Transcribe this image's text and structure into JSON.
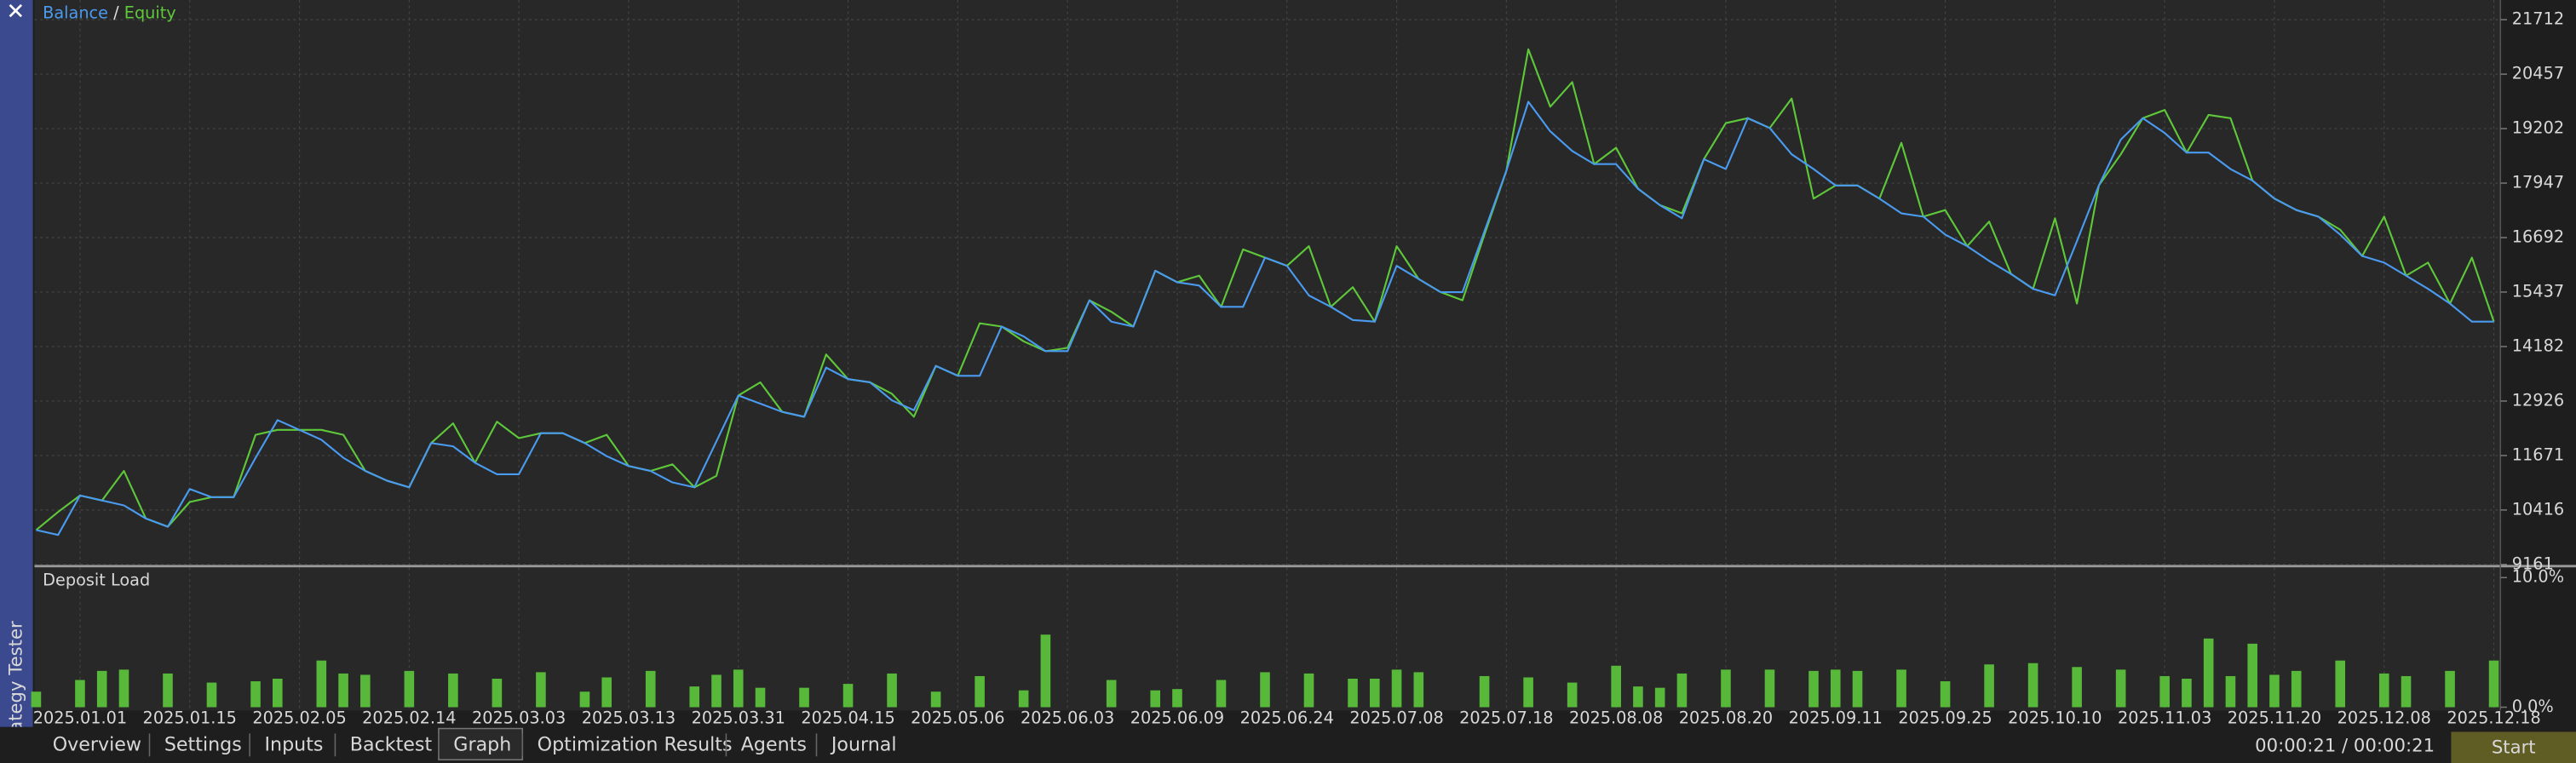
{
  "sidebar": {
    "title": "Strategy Tester"
  },
  "chart_data": [
    {
      "type": "line",
      "legend_separator": "/",
      "categories": [
        null,
        null,
        "2025.01.01",
        null,
        null,
        null,
        null,
        "2025.01.15",
        null,
        null,
        null,
        null,
        "2025.02.05",
        null,
        null,
        null,
        null,
        "2025.02.14",
        null,
        null,
        null,
        null,
        "2025.03.03",
        null,
        null,
        null,
        null,
        "2025.03.13",
        null,
        null,
        null,
        null,
        "2025.03.31",
        null,
        null,
        null,
        null,
        "2025.04.15",
        null,
        null,
        null,
        null,
        "2025.05.06",
        null,
        null,
        null,
        null,
        "2025.06.03",
        null,
        null,
        null,
        null,
        "2025.06.09",
        null,
        null,
        null,
        null,
        "2025.06.24",
        null,
        null,
        null,
        null,
        "2025.07.08",
        null,
        null,
        null,
        null,
        "2025.07.18",
        null,
        null,
        null,
        null,
        "2025.08.08",
        null,
        null,
        null,
        null,
        "2025.08.20",
        null,
        null,
        null,
        null,
        "2025.09.11",
        null,
        null,
        null,
        null,
        "2025.09.25",
        null,
        null,
        null,
        null,
        "2025.10.10",
        null,
        null,
        null,
        null,
        "2025.11.03",
        null,
        null,
        null,
        null,
        "2025.11.20",
        null,
        null,
        null,
        null,
        "2025.12.08",
        null,
        null,
        null,
        null,
        "2025.12.18"
      ],
      "series": [
        {
          "name": "Balance",
          "color": "#4a9bf0",
          "values": [
            9955,
            9841,
            10749,
            10635,
            10522,
            10219,
            10030,
            10900,
            10711,
            10711,
            11618,
            12487,
            12261,
            12034,
            11618,
            11316,
            11089,
            10938,
            11958,
            11883,
            11505,
            11240,
            11240,
            12185,
            12185,
            11958,
            11656,
            11429,
            11316,
            11051,
            10938,
            11996,
            13054,
            12865,
            12676,
            12563,
            13697,
            13432,
            13357,
            12941,
            12714,
            13735,
            13508,
            13508,
            14642,
            14415,
            14075,
            14075,
            15247,
            14755,
            14642,
            15927,
            15663,
            15587,
            15096,
            15096,
            16230,
            16041,
            15360,
            15096,
            14793,
            14755,
            16041,
            15738,
            15436,
            15436,
            16834,
            18233,
            19821,
            19140,
            18687,
            18384,
            18384,
            17817,
            17439,
            17137,
            18498,
            18271,
            19443,
            19216,
            18611,
            18271,
            17893,
            17893,
            17590,
            17250,
            17175,
            16759,
            16494,
            16154,
            15852,
            15511,
            15360,
            16608,
            17893,
            18951,
            19443,
            19102,
            18649,
            18649,
            18271,
            18006,
            17590,
            17326,
            17175,
            16759,
            16267,
            16116,
            15814,
            15511,
            15171,
            14755,
            14755
          ]
        },
        {
          "name": "Equity",
          "color": "#5ec83a",
          "values": [
            9955,
            10371,
            10749,
            10635,
            11316,
            10219,
            10030,
            10600,
            10711,
            10711,
            12148,
            12261,
            12261,
            12261,
            12148,
            11316,
            11089,
            10938,
            11958,
            12412,
            11505,
            12450,
            12072,
            12185,
            12185,
            11958,
            12148,
            11429,
            11316,
            11467,
            10938,
            11202,
            13054,
            13357,
            12676,
            12563,
            13999,
            13432,
            13357,
            13092,
            12563,
            13735,
            13508,
            14718,
            14642,
            14302,
            14075,
            14151,
            15247,
            14982,
            14642,
            15927,
            15663,
            15814,
            15096,
            16419,
            16230,
            16041,
            16494,
            15096,
            15549,
            14755,
            16494,
            15738,
            15436,
            15247,
            16759,
            18233,
            21030,
            19707,
            20274,
            18384,
            18762,
            17817,
            17439,
            17250,
            18498,
            19329,
            19443,
            19216,
            19896,
            17590,
            17893,
            17893,
            17590,
            18876,
            17175,
            17326,
            16494,
            17061,
            15852,
            15511,
            17137,
            15171,
            17893,
            18611,
            19443,
            19632,
            18649,
            19518,
            19443,
            18006,
            17590,
            17326,
            17175,
            16873,
            16267,
            17175,
            15814,
            16116,
            15171,
            16230,
            14755
          ]
        }
      ],
      "ylim": [
        9161,
        21712
      ],
      "yticks": [
        9161,
        10416,
        11671,
        12926,
        14182,
        15437,
        16692,
        17947,
        19202,
        20457,
        21712
      ],
      "grid": true
    },
    {
      "type": "bar",
      "title": "Deposit Load",
      "color": "#58b83a",
      "values": [
        1.2,
        null,
        2.1,
        2.8,
        2.9,
        null,
        2.6,
        null,
        1.9,
        null,
        2.0,
        2.2,
        null,
        3.6,
        2.6,
        2.5,
        null,
        2.8,
        null,
        2.6,
        null,
        2.2,
        null,
        2.7,
        null,
        1.2,
        2.3,
        null,
        2.8,
        null,
        1.6,
        2.5,
        2.9,
        1.5,
        null,
        1.5,
        null,
        1.8,
        null,
        2.6,
        null,
        1.2,
        null,
        2.4,
        null,
        1.3,
        5.6,
        null,
        null,
        2.1,
        null,
        1.3,
        1.4,
        null,
        2.1,
        null,
        2.7,
        null,
        2.6,
        null,
        2.2,
        2.2,
        2.9,
        2.7,
        null,
        null,
        2.4,
        null,
        2.3,
        null,
        1.9,
        null,
        3.2,
        1.6,
        1.5,
        2.6,
        null,
        2.9,
        null,
        2.9,
        null,
        2.8,
        2.9,
        2.8,
        null,
        2.9,
        null,
        2.0,
        null,
        3.3,
        null,
        3.4,
        null,
        3.1,
        null,
        2.9,
        null,
        2.4,
        2.2,
        5.3,
        2.4,
        4.9,
        2.5,
        2.8,
        null,
        3.6,
        null,
        2.6,
        2.4,
        null,
        2.8,
        null,
        3.6
      ],
      "ylim": [
        0,
        10
      ],
      "yticks": [
        {
          "value": 0,
          "label": "0.0%"
        },
        {
          "value": 10,
          "label": "10.0%"
        }
      ]
    }
  ],
  "tabs": [
    "Overview",
    "Settings",
    "Inputs",
    "Backtest",
    "Graph",
    "Optimization Results",
    "Agents",
    "Journal"
  ],
  "selected_tab": "Graph",
  "timer": "00:00:21 / 00:00:21",
  "start_button": "Start"
}
